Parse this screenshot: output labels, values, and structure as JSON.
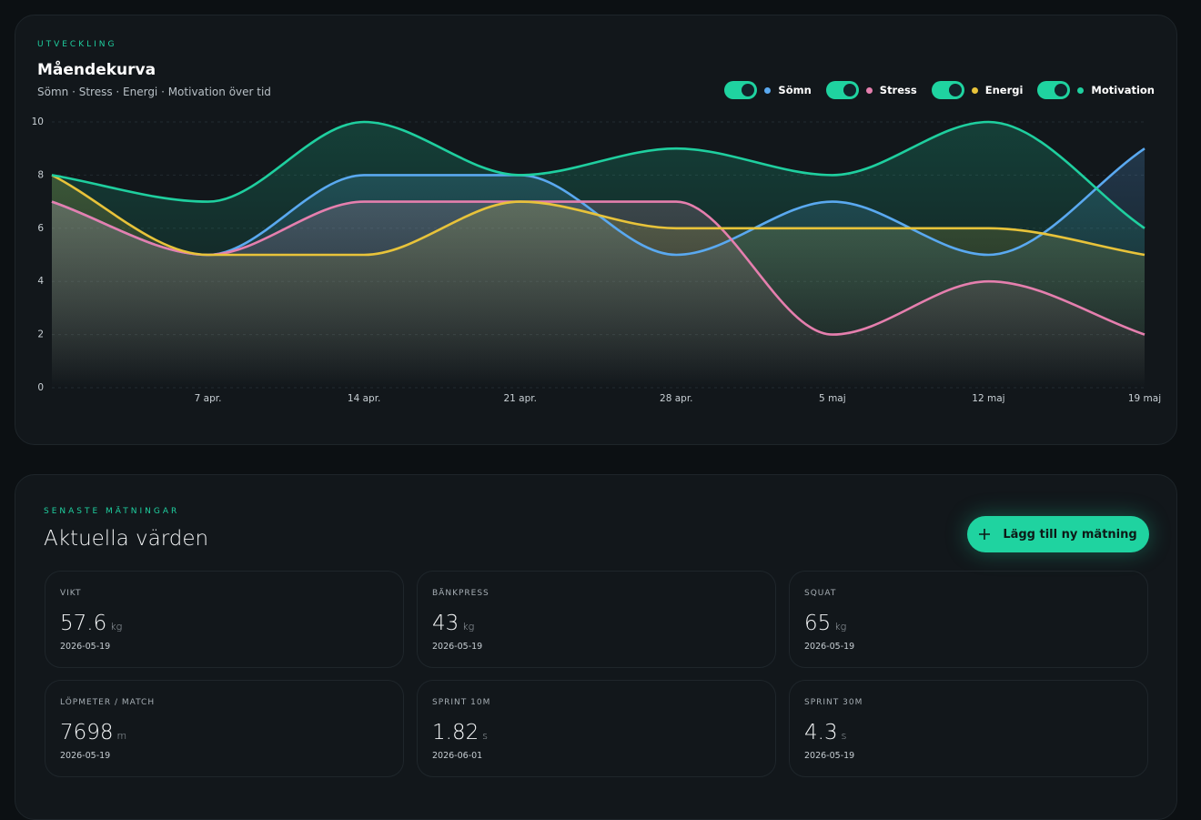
{
  "header": {
    "eyebrow": "UTVECKLING",
    "title": "Måendekurva",
    "subtitle": "Sömn · Stress · Energi · Motivation över tid"
  },
  "chart_data": {
    "type": "line",
    "area": true,
    "smooth": true,
    "grid": true,
    "categories": [
      null,
      "7 apr.",
      "14 apr.",
      "21 apr.",
      "28 apr.",
      "5 maj",
      "12 maj",
      "19 maj"
    ],
    "series": [
      {
        "name": "Sömn",
        "color": "#5aa9f0",
        "values": [
          7,
          5,
          8,
          8,
          5,
          7,
          5,
          9
        ]
      },
      {
        "name": "Stress",
        "color": "#e57fae",
        "values": [
          7,
          5,
          7,
          7,
          7,
          2,
          4,
          2
        ]
      },
      {
        "name": "Energi",
        "color": "#e8c33a",
        "values": [
          8,
          5,
          5,
          7,
          6,
          6,
          6,
          5
        ]
      },
      {
        "name": "Motivation",
        "color": "#1fcf9f",
        "values": [
          8,
          7,
          10,
          8,
          9,
          8,
          10,
          6
        ]
      }
    ],
    "ylim": [
      0,
      10
    ],
    "yticks": [
      0,
      2,
      4,
      6,
      8,
      10
    ]
  },
  "measurements": {
    "eyebrow": "SENASTE MÄTNINGAR",
    "title": "Aktuella värden",
    "button": "Lägg till ny mätning",
    "cards": [
      {
        "label": "VIKT",
        "value": 57.6,
        "unit": "kg",
        "date": "2026-05-19"
      },
      {
        "label": "BÄNKPRESS",
        "value": 43,
        "unit": "kg",
        "date": "2026-05-19"
      },
      {
        "label": "SQUAT",
        "value": 65,
        "unit": "kg",
        "date": "2026-05-19"
      },
      {
        "label": "LÖPMETER / MATCH",
        "value": 7698,
        "unit": "m",
        "date": "2026-05-19"
      },
      {
        "label": "SPRINT 10M",
        "value": 1.82,
        "unit": "s",
        "date": "2026-06-01"
      },
      {
        "label": "SPRINT 30M",
        "value": 4.3,
        "unit": "s",
        "date": "2026-05-19"
      }
    ]
  }
}
